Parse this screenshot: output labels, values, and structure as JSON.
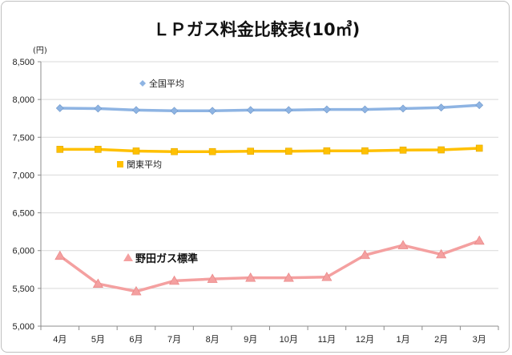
{
  "chart_data": {
    "type": "line",
    "title": "ＬＰガス料金比較表(10㎥)",
    "ylabel": "(円)",
    "xlabel": "",
    "categories": [
      "4月",
      "5月",
      "6月",
      "7月",
      "8月",
      "9月",
      "10月",
      "11月",
      "12月",
      "1月",
      "2月",
      "3月"
    ],
    "ylim": [
      5000,
      8500
    ],
    "yticks": [
      "5,000",
      "5,500",
      "6,000",
      "6,500",
      "7,000",
      "7,500",
      "8,000",
      "8,500"
    ],
    "ytick_values": [
      5000,
      5500,
      6000,
      6500,
      7000,
      7500,
      8000,
      8500
    ],
    "grid": "horizontal",
    "series": [
      {
        "name": "全国平均",
        "color": "#8eb4e3",
        "marker": "diamond",
        "values": [
          7885,
          7880,
          7860,
          7850,
          7850,
          7860,
          7860,
          7868,
          7868,
          7880,
          7893,
          7925
        ]
      },
      {
        "name": "関東平均",
        "color": "#ffc000",
        "marker": "square",
        "values": [
          7340,
          7340,
          7318,
          7310,
          7310,
          7315,
          7315,
          7320,
          7320,
          7330,
          7333,
          7355
        ]
      },
      {
        "name": "野田ガス標準",
        "color": "#f4a0a0",
        "marker": "triangle",
        "values": [
          5930,
          5560,
          5460,
          5600,
          5625,
          5640,
          5640,
          5650,
          5940,
          6070,
          5950,
          6130
        ]
      }
    ]
  }
}
